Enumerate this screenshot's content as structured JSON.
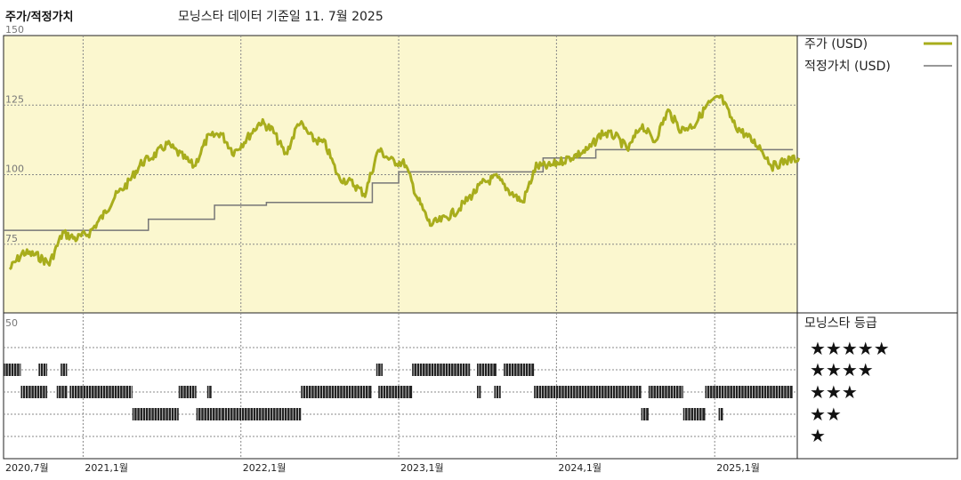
{
  "header": {
    "title": "주가/적정가치",
    "subtitle": "모닝스타 데이터 기준일 11. 7월 2025"
  },
  "colors": {
    "price": "#a8ad1c",
    "fair_value": "#777777",
    "top_panel_bg": "#fbf7cf",
    "rating_bar": "#222222"
  },
  "chart_data": [
    {
      "type": "line",
      "title": "",
      "xlabel": "",
      "ylabel": "",
      "x_ticks": [
        "2020,7월",
        "2021,1월",
        "2022,1월",
        "2023,1월",
        "2024,1월",
        "2025,1월"
      ],
      "y_ticks": [
        150,
        125,
        100,
        75
      ],
      "ylim": [
        50,
        150
      ],
      "xlim": [
        "2020-07-01",
        "2025-07-11"
      ],
      "grid": true,
      "legend_position": "right",
      "series": [
        {
          "name": "주가 (USD)",
          "x": [
            "2020-07",
            "2020-08",
            "2020-09",
            "2020-10",
            "2020-11",
            "2020-12",
            "2021-01",
            "2021-02",
            "2021-03",
            "2021-04",
            "2021-05",
            "2021-06",
            "2021-07",
            "2021-08",
            "2021-09",
            "2021-10",
            "2021-11",
            "2021-12",
            "2022-01",
            "2022-02",
            "2022-03",
            "2022-04",
            "2022-05",
            "2022-06",
            "2022-07",
            "2022-08",
            "2022-09",
            "2022-10",
            "2022-11",
            "2022-12",
            "2023-01",
            "2023-02",
            "2023-03",
            "2023-04",
            "2023-05",
            "2023-06",
            "2023-07",
            "2023-08",
            "2023-09",
            "2023-10",
            "2023-11",
            "2023-12",
            "2024-01",
            "2024-02",
            "2024-03",
            "2024-04",
            "2024-05",
            "2024-06",
            "2024-07",
            "2024-08",
            "2024-09",
            "2024-10",
            "2024-11",
            "2024-12",
            "2025-01",
            "2025-02",
            "2025-03",
            "2025-04",
            "2025-05",
            "2025-06",
            "2025-07"
          ],
          "values": [
            66,
            72,
            71,
            68,
            79,
            77,
            79,
            85,
            92,
            97,
            104,
            107,
            111,
            107,
            103,
            113,
            115,
            108,
            113,
            119,
            116,
            107,
            119,
            113,
            111,
            99,
            97,
            93,
            109,
            105,
            104,
            91,
            82,
            84,
            87,
            92,
            97,
            99,
            94,
            90,
            103,
            103,
            105,
            107,
            109,
            115,
            114,
            109,
            118,
            112,
            123,
            116,
            118,
            125,
            128,
            118,
            114,
            110,
            103,
            105,
            106
          ]
        },
        {
          "name": "적정가치 (USD)",
          "x": [
            "2020-07",
            "2021-01",
            "2021-06",
            "2021-11",
            "2022-03",
            "2022-11",
            "2023-01",
            "2023-12",
            "2024-04",
            "2025-02",
            "2025-07"
          ],
          "values": [
            80,
            80,
            84,
            89,
            90,
            97,
            101,
            106,
            109,
            109,
            109
          ]
        }
      ]
    },
    {
      "type": "bar",
      "title": "모닝스타 등급",
      "ylabel": "",
      "y_ticks": [
        50
      ],
      "categories": [
        "★★★★★",
        "★★★★",
        "★★★",
        "★★",
        "★"
      ],
      "series": [
        {
          "name": "★★★★★",
          "periods": []
        },
        {
          "name": "★★★★",
          "periods": [
            [
              "2020-07-01",
              "2020-08-10"
            ],
            [
              "2020-09-20",
              "2020-10-10"
            ],
            [
              "2020-11-10",
              "2020-11-25"
            ],
            [
              "2022-11-10",
              "2022-11-25"
            ],
            [
              "2023-02-01",
              "2023-06-15"
            ],
            [
              "2023-07-01",
              "2023-08-15"
            ],
            [
              "2023-09-01",
              "2023-11-10"
            ]
          ]
        },
        {
          "name": "★★★",
          "periods": [
            [
              "2020-08-10",
              "2020-10-10"
            ],
            [
              "2020-11-01",
              "2020-11-25"
            ],
            [
              "2020-12-01",
              "2021-04-25"
            ],
            [
              "2021-08-10",
              "2021-09-20"
            ],
            [
              "2021-10-15",
              "2021-10-25"
            ],
            [
              "2022-05-20",
              "2022-10-30"
            ],
            [
              "2022-11-15",
              "2023-02-01"
            ],
            [
              "2023-07-01",
              "2023-07-10"
            ],
            [
              "2023-08-10",
              "2023-08-25"
            ],
            [
              "2023-11-10",
              "2024-07-15"
            ],
            [
              "2024-08-01",
              "2024-10-20"
            ],
            [
              "2024-12-10",
              "2025-01-25"
            ],
            [
              "2025-01-25",
              "2025-06-30"
            ]
          ]
        },
        {
          "name": "★★",
          "periods": [
            [
              "2021-04-25",
              "2021-08-10"
            ],
            [
              "2021-09-20",
              "2021-11-20"
            ],
            [
              "2021-11-20",
              "2022-05-20"
            ],
            [
              "2024-07-15",
              "2024-08-01"
            ],
            [
              "2024-10-20",
              "2024-12-10"
            ],
            [
              "2025-01-10",
              "2025-01-20"
            ]
          ]
        },
        {
          "name": "★",
          "periods": []
        }
      ]
    }
  ],
  "legend": {
    "price_label": "주가 (USD)",
    "fair_value_label": "적정가치 (USD)",
    "rating_title": "모닝스타 등급"
  },
  "ratings_labels": [
    "★★★★★",
    "★★★★",
    "★★★",
    "★★",
    "★"
  ]
}
